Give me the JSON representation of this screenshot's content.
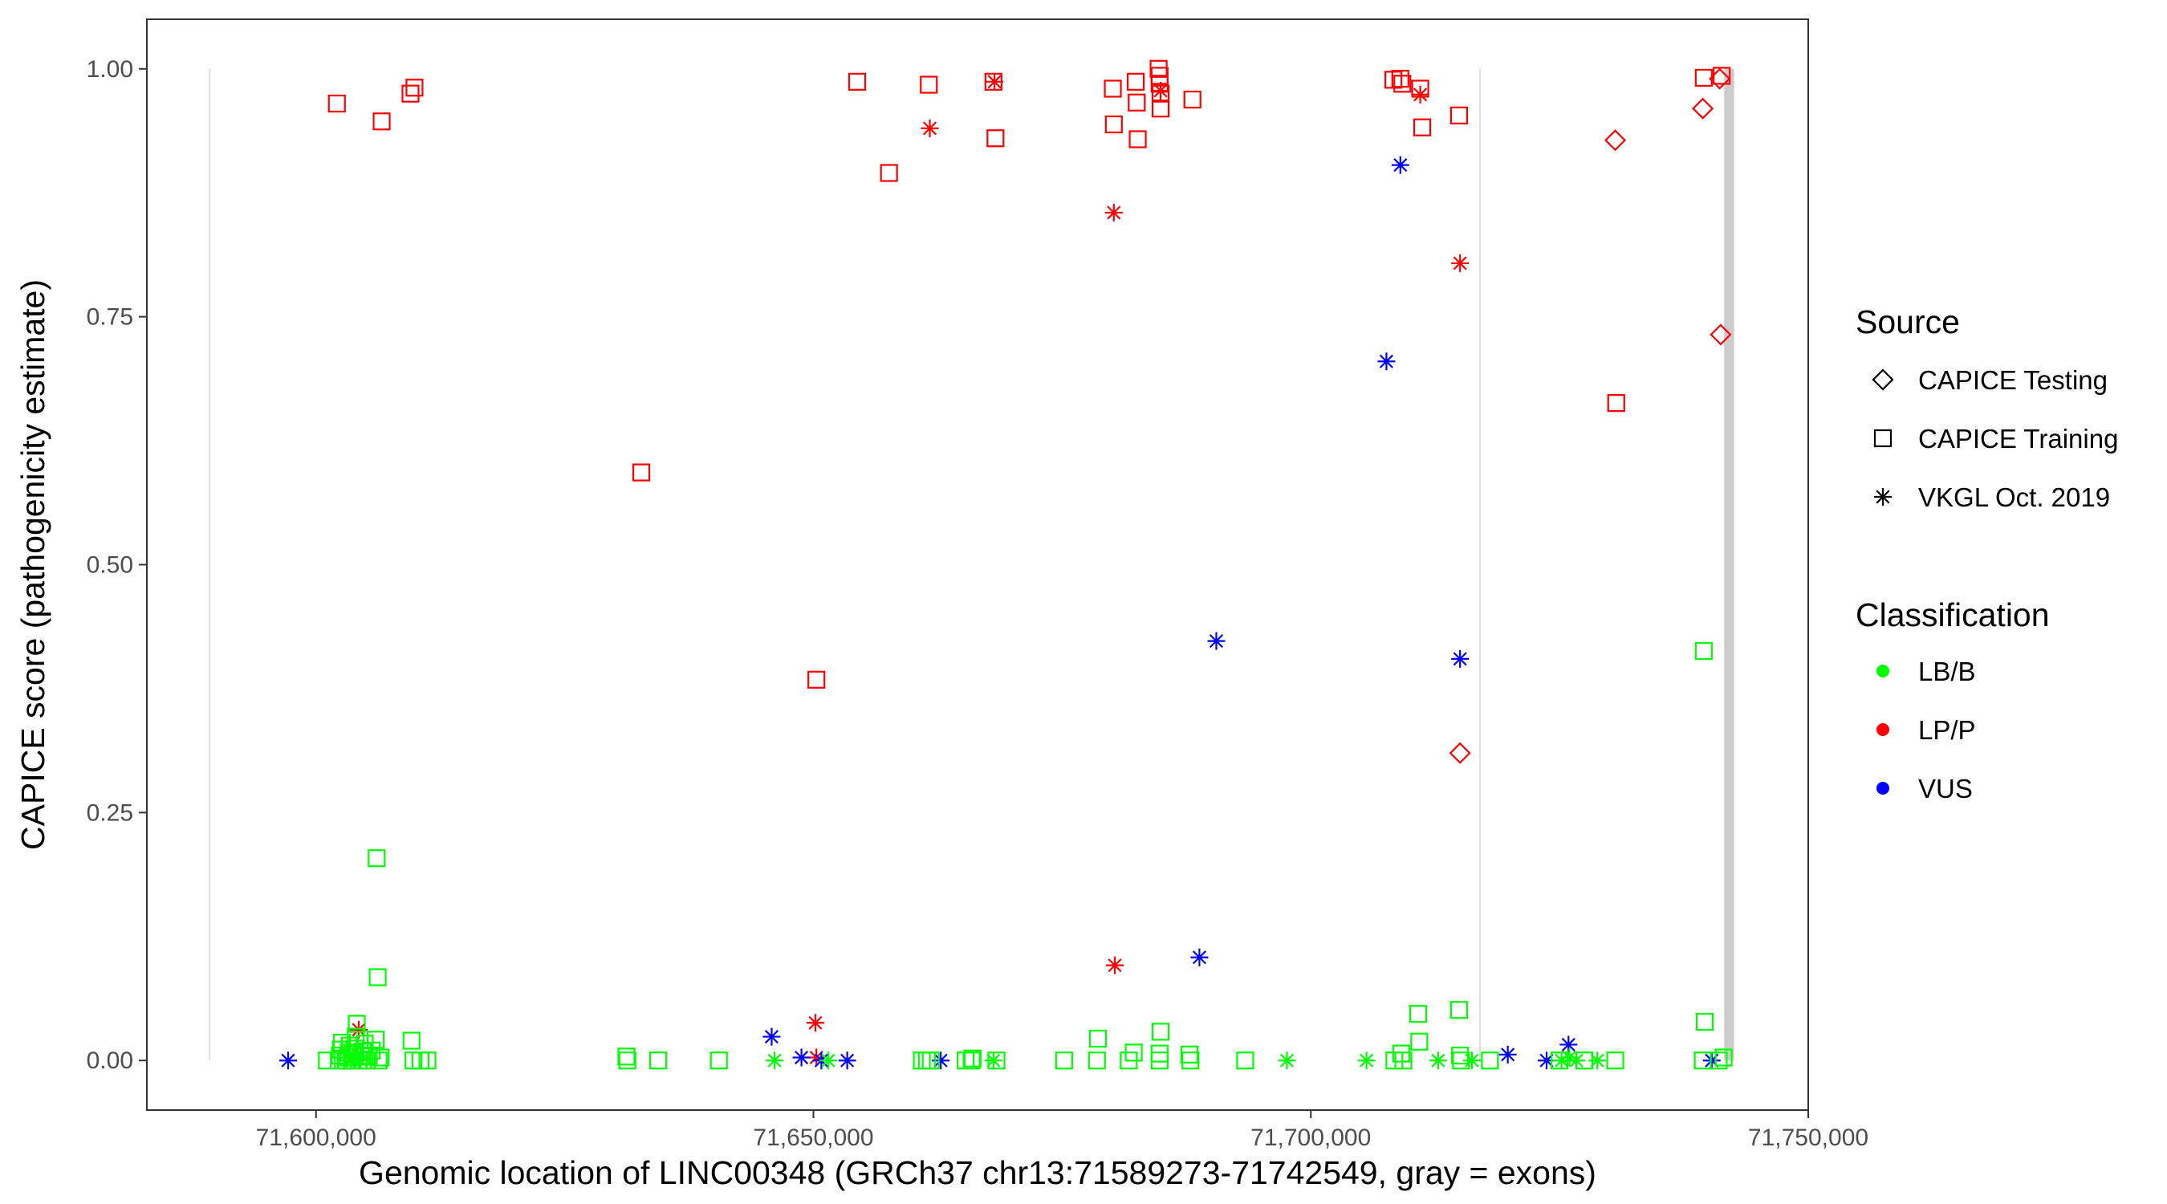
{
  "chart_data": {
    "type": "scatter",
    "xlabel": "Genomic location of LINC00348 (GRCh37 chr13:71589273-71742549, gray = exons)",
    "ylabel": "CAPICE score (pathogenicity estimate)",
    "xlim": [
      71583000,
      71750000
    ],
    "ylim": [
      -0.05,
      1.05
    ],
    "x_ticks": [
      71600000,
      71650000,
      71700000,
      71750000
    ],
    "x_tick_labels": [
      "71,600,000",
      "71,650,000",
      "71,700,000",
      "71,750,000"
    ],
    "y_ticks": [
      0,
      0.25,
      0.5,
      0.75,
      1
    ],
    "y_tick_labels": [
      "0.00",
      "0.25",
      "0.50",
      "0.75",
      "1.00"
    ],
    "grid": false,
    "exons": [
      {
        "start": 71589273,
        "end": 71589350
      },
      {
        "start": 71716950,
        "end": 71717050
      },
      {
        "start": 71741550,
        "end": 71742549
      }
    ],
    "legend": {
      "placement": "right",
      "source": {
        "title": "Source",
        "items": [
          {
            "label": "CAPICE Testing",
            "shape": "diamond"
          },
          {
            "label": "CAPICE Training",
            "shape": "square"
          },
          {
            "label": "VKGL Oct. 2019",
            "shape": "asterisk"
          }
        ]
      },
      "classification": {
        "title": "Classification",
        "items": [
          {
            "label": "LB/B",
            "color": "#00ff00"
          },
          {
            "label": "LP/P",
            "color": "#ff0000"
          },
          {
            "label": "VUS",
            "color": "#0000ff"
          }
        ]
      }
    },
    "colors": {
      "LB/B": "#00ff00",
      "LP/P": "#ff0000",
      "VUS": "#0000ff",
      "exon": "#cccccc"
    },
    "series": [
      {
        "source": "CAPICE Training",
        "classification": "LP/P",
        "points": [
          [
            71602100,
            0.965
          ],
          [
            71606600,
            0.947
          ],
          [
            71609500,
            0.975
          ],
          [
            71609900,
            0.981
          ],
          [
            71632700,
            0.593
          ],
          [
            71650300,
            0.384
          ],
          [
            71654400,
            0.987
          ],
          [
            71657600,
            0.895
          ],
          [
            71661600,
            0.984
          ],
          [
            71668100,
            0.987
          ],
          [
            71668300,
            0.93
          ],
          [
            71680100,
            0.98
          ],
          [
            71680200,
            0.944
          ],
          [
            71682400,
            0.987
          ],
          [
            71682500,
            0.966
          ],
          [
            71682600,
            0.929
          ],
          [
            71684700,
            1.0
          ],
          [
            71684800,
            0.993
          ],
          [
            71684800,
            0.985
          ],
          [
            71684900,
            0.975
          ],
          [
            71684900,
            0.96
          ],
          [
            71688100,
            0.969
          ],
          [
            71708300,
            0.989
          ],
          [
            71709000,
            0.99
          ],
          [
            71709200,
            0.985
          ],
          [
            71711000,
            0.98
          ],
          [
            71711200,
            0.941
          ],
          [
            71714900,
            0.953
          ],
          [
            71730700,
            0.663
          ],
          [
            71739500,
            0.991
          ],
          [
            71741300,
            0.993
          ]
        ]
      },
      {
        "source": "VKGL Oct. 2019",
        "classification": "LP/P",
        "points": [
          [
            71604300,
            0.031
          ],
          [
            71650200,
            0.038
          ],
          [
            71650300,
            0.003
          ],
          [
            71661700,
            0.94
          ],
          [
            71668200,
            0.987
          ],
          [
            71680200,
            0.855
          ],
          [
            71680300,
            0.096
          ],
          [
            71684900,
            0.978
          ],
          [
            71711000,
            0.974
          ],
          [
            71715000,
            0.804
          ]
        ]
      },
      {
        "source": "CAPICE Testing",
        "classification": "LP/P",
        "points": [
          [
            71715000,
            0.31
          ],
          [
            71730600,
            0.928
          ],
          [
            71739400,
            0.96
          ],
          [
            71741100,
            0.99
          ],
          [
            71741200,
            0.732
          ]
        ]
      },
      {
        "source": "VKGL Oct. 2019",
        "classification": "VUS",
        "points": [
          [
            71597200,
            0.0
          ],
          [
            71645800,
            0.024
          ],
          [
            71648800,
            0.003
          ],
          [
            71650800,
            0.0
          ],
          [
            71653400,
            0.0
          ],
          [
            71662800,
            0.0
          ],
          [
            71688800,
            0.104
          ],
          [
            71690500,
            0.423
          ],
          [
            71707600,
            0.705
          ],
          [
            71709000,
            0.903
          ],
          [
            71715000,
            0.405
          ],
          [
            71719800,
            0.006
          ],
          [
            71723700,
            0.0
          ],
          [
            71725900,
            0.016
          ],
          [
            71740300,
            0.0
          ]
        ]
      },
      {
        "source": "CAPICE Training",
        "classification": "LB/B",
        "points": [
          [
            71601100,
            0.0
          ],
          [
            71602300,
            0.0
          ],
          [
            71602400,
            0.005
          ],
          [
            71602500,
            0.011
          ],
          [
            71602600,
            0.018
          ],
          [
            71603000,
            0.0
          ],
          [
            71603200,
            0.003
          ],
          [
            71603300,
            0.008
          ],
          [
            71603400,
            0.015
          ],
          [
            71603600,
            0.0
          ],
          [
            71603700,
            0.006
          ],
          [
            71603900,
            0.012
          ],
          [
            71604000,
            0.024
          ],
          [
            71604100,
            0.037
          ],
          [
            71604300,
            0.0
          ],
          [
            71604500,
            0.004
          ],
          [
            71604700,
            0.009
          ],
          [
            71604900,
            0.017
          ],
          [
            71605100,
            0.0
          ],
          [
            71605300,
            0.005
          ],
          [
            71605600,
            0.01
          ],
          [
            71606000,
            0.021
          ],
          [
            71606100,
            0.204
          ],
          [
            71606200,
            0.084
          ],
          [
            71606300,
            0.0
          ],
          [
            71606500,
            0.003
          ],
          [
            71609600,
            0.02
          ],
          [
            71609800,
            0.0
          ],
          [
            71610500,
            0.0
          ],
          [
            71611200,
            0.0
          ],
          [
            71631200,
            0.004
          ],
          [
            71631300,
            0.0
          ],
          [
            71634400,
            0.0
          ],
          [
            71640500,
            0.0
          ],
          [
            71660900,
            0.0
          ],
          [
            71661400,
            0.0
          ],
          [
            71661800,
            0.0
          ],
          [
            71665300,
            0.0
          ],
          [
            71665900,
            0.0
          ],
          [
            71666000,
            0.002
          ],
          [
            71668400,
            0.0
          ],
          [
            71675200,
            0.0
          ],
          [
            71678500,
            0.0
          ],
          [
            71678600,
            0.022
          ],
          [
            71681700,
            0.0
          ],
          [
            71682200,
            0.008
          ],
          [
            71684800,
            0.0
          ],
          [
            71684800,
            0.007
          ],
          [
            71684900,
            0.029
          ],
          [
            71687800,
            0.006
          ],
          [
            71687900,
            0.0
          ],
          [
            71693400,
            0.0
          ],
          [
            71708400,
            0.0
          ],
          [
            71709100,
            0.007
          ],
          [
            71709300,
            0.0
          ],
          [
            71710800,
            0.047
          ],
          [
            71710900,
            0.019
          ],
          [
            71714900,
            0.051
          ],
          [
            71715000,
            0.005
          ],
          [
            71715100,
            0.0
          ],
          [
            71718000,
            0.0
          ],
          [
            71725000,
            0.0
          ],
          [
            71727500,
            0.0
          ],
          [
            71730600,
            0.0
          ],
          [
            71739400,
            0.0
          ],
          [
            71739500,
            0.413
          ],
          [
            71739600,
            0.039
          ],
          [
            71741000,
            0.0
          ],
          [
            71741500,
            0.003
          ]
        ]
      },
      {
        "source": "VKGL Oct. 2019",
        "classification": "LB/B",
        "points": [
          [
            71603500,
            0.0
          ],
          [
            71604500,
            0.0
          ],
          [
            71646100,
            0.0
          ],
          [
            71651500,
            0.0
          ],
          [
            71668100,
            0.0
          ],
          [
            71697600,
            0.0
          ],
          [
            71705600,
            0.0
          ],
          [
            71712800,
            0.0
          ],
          [
            71716200,
            0.0
          ],
          [
            71725200,
            0.0
          ],
          [
            71726000,
            0.003
          ],
          [
            71726700,
            0.0
          ],
          [
            71728800,
            0.0
          ]
        ]
      }
    ]
  }
}
